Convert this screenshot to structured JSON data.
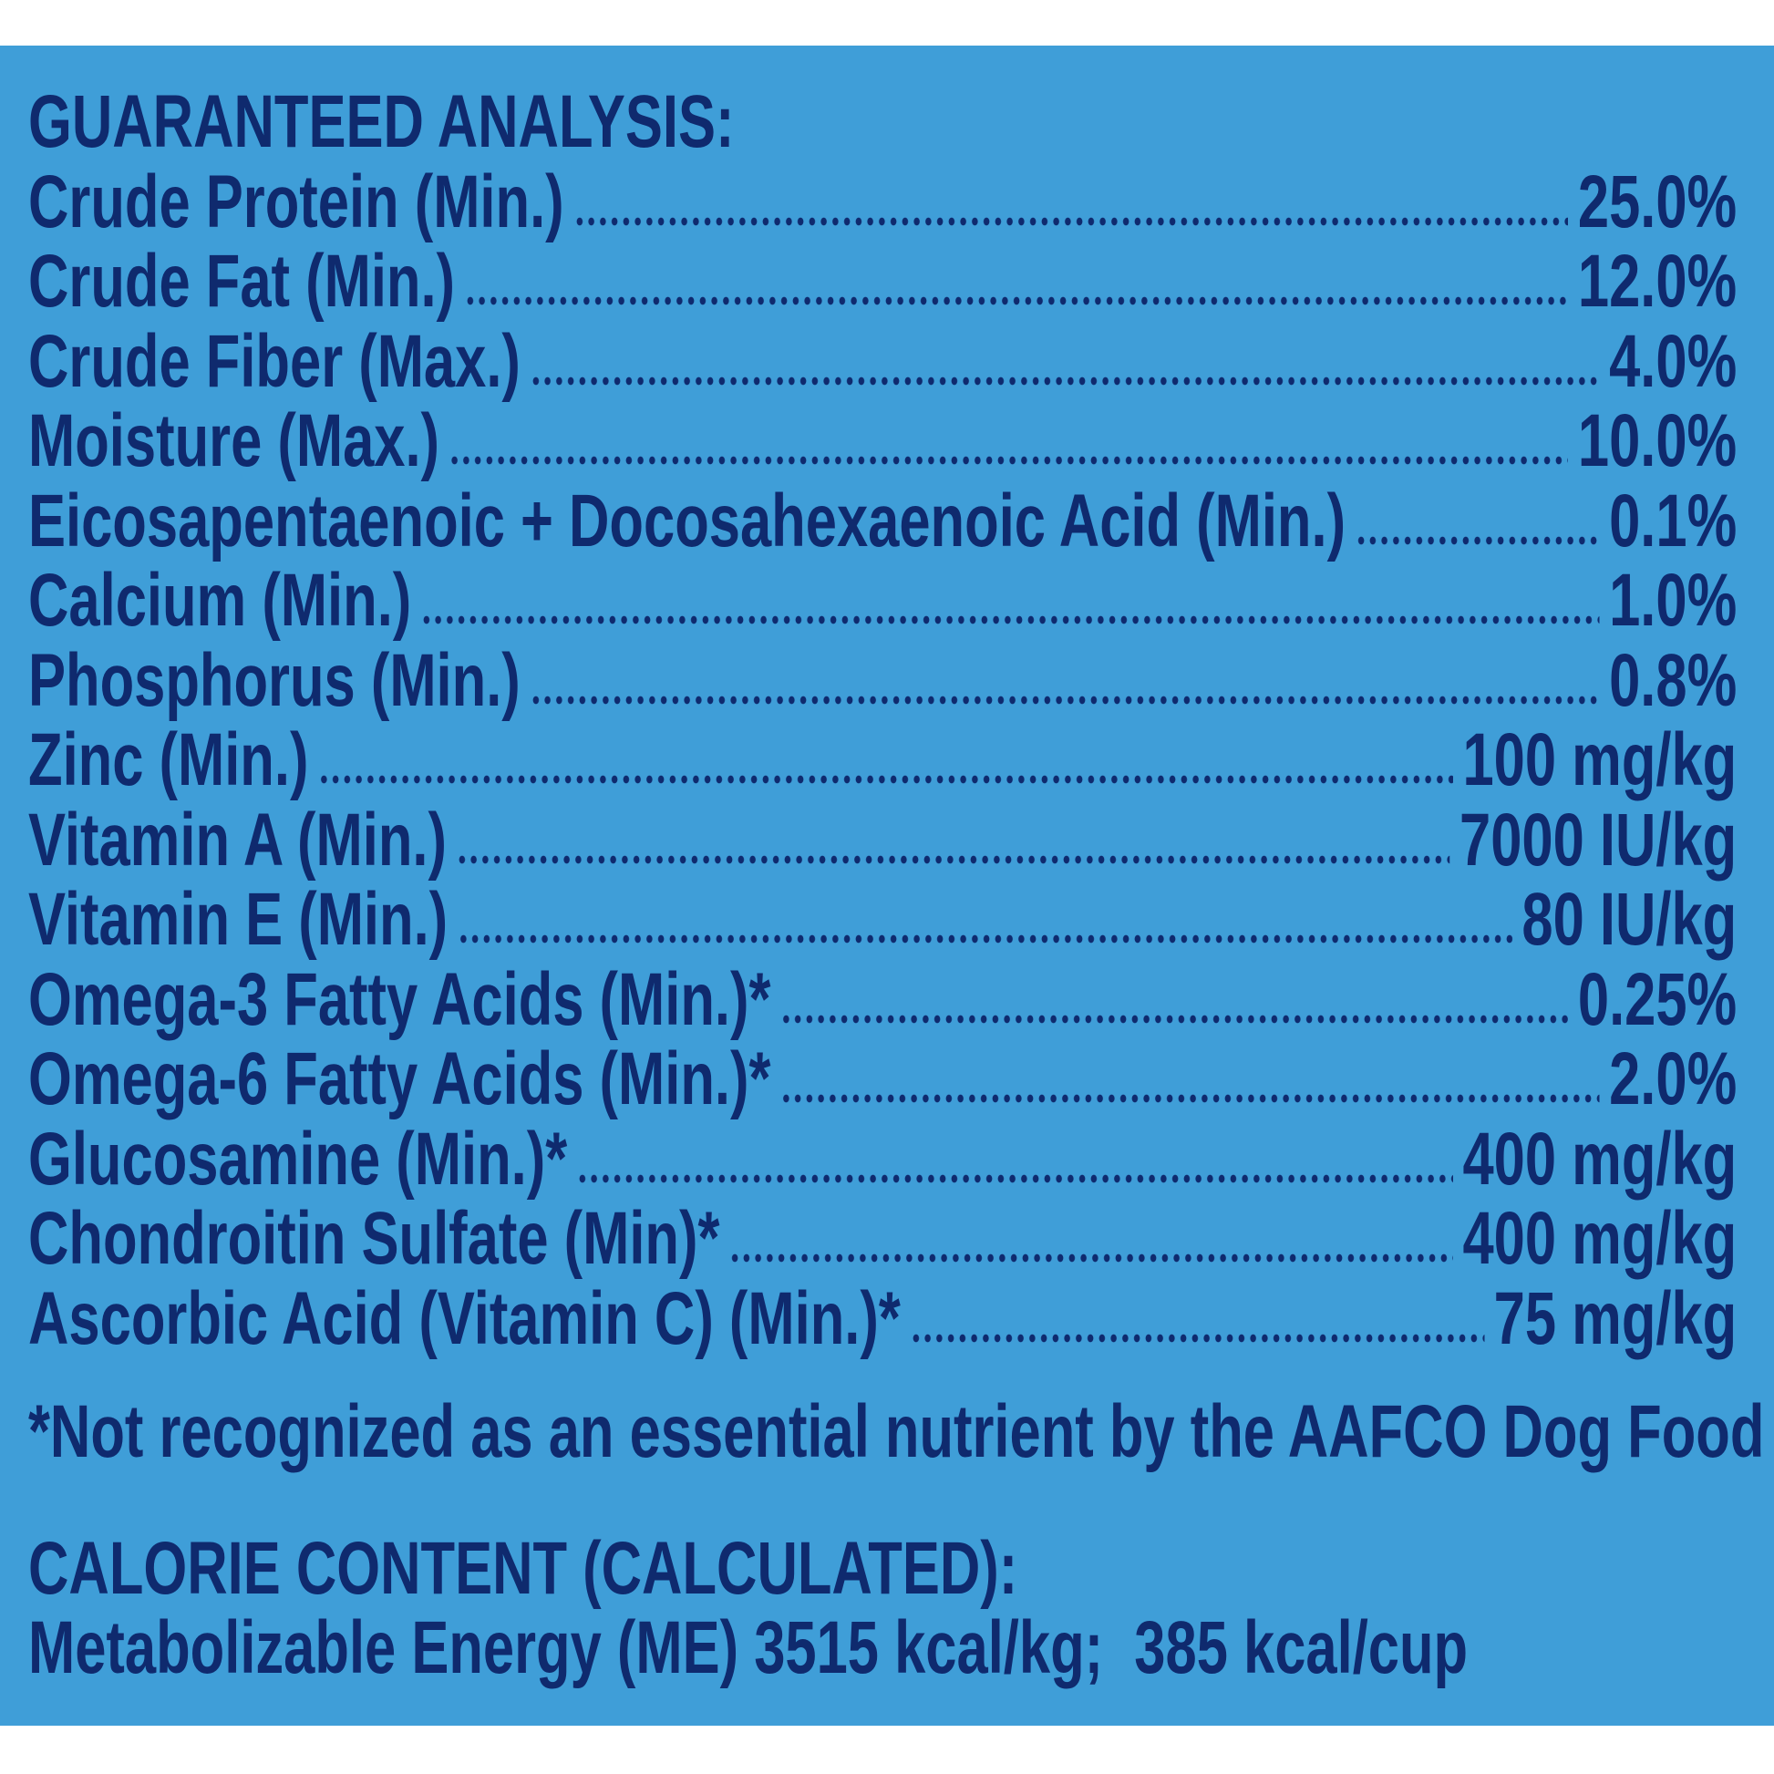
{
  "header": {
    "title": "GUARANTEED ANALYSIS:"
  },
  "rows": [
    {
      "label": "Crude Protein (Min.)",
      "value": "25.0%"
    },
    {
      "label": "Crude Fat (Min.)",
      "value": "12.0%"
    },
    {
      "label": "Crude Fiber (Max.)",
      "value": "4.0%"
    },
    {
      "label": "Moisture (Max.)",
      "value": "10.0%"
    },
    {
      "label": "Eicosapentaenoic + Docosahexaenoic Acid (Min.)",
      "value": "0.1%"
    },
    {
      "label": "Calcium (Min.)",
      "value": "1.0%"
    },
    {
      "label": "Phosphorus (Min.)",
      "value": "0.8%"
    },
    {
      "label": "Zinc (Min.)",
      "value": "100 mg/kg"
    },
    {
      "label": "Vitamin A (Min.)",
      "value": "7000 IU/kg"
    },
    {
      "label": "Vitamin E (Min.)",
      "value": "80 IU/kg"
    },
    {
      "label": "Omega-3 Fatty Acids (Min.)*",
      "value": "0.25%"
    },
    {
      "label": "Omega-6 Fatty Acids (Min.)*",
      "value": "2.0%"
    },
    {
      "label": "Glucosamine (Min.)*",
      "value": "400 mg/kg"
    },
    {
      "label": "Chondroitin Sulfate (Min)*",
      "value": "400 mg/kg"
    },
    {
      "label": "Ascorbic Acid (Vitamin C) (Min.)*",
      "value": "75 mg/kg"
    }
  ],
  "footnote": "*Not recognized as an essential nutrient by the AAFCO Dog Food Nutrient Profiles.",
  "calorie": {
    "title": "CALORIE CONTENT (CALCULATED):",
    "text": "Metabolizable Energy (ME) 3515 kcal/kg;  385 kcal/cup"
  }
}
